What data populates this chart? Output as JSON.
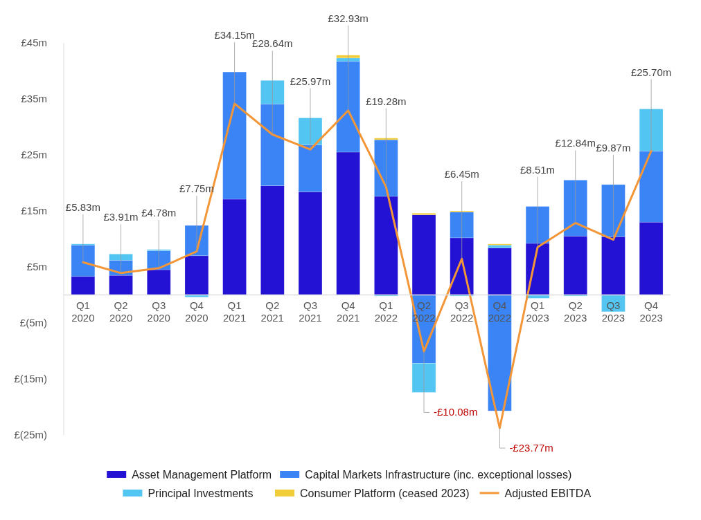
{
  "chart_data": {
    "type": "bar",
    "stacked": true,
    "categories": [
      "Q1 2020",
      "Q2 2020",
      "Q3 2020",
      "Q4 2020",
      "Q1 2021",
      "Q2 2021",
      "Q3 2021",
      "Q4 2021",
      "Q1 2022",
      "Q2 2022",
      "Q3 2022",
      "Q4 2022",
      "Q1 2023",
      "Q2 2023",
      "Q3 2023",
      "Q4 2023"
    ],
    "series": [
      {
        "name": "Asset Management Platform",
        "color": "#2312d4",
        "values": [
          3.3,
          3.5,
          4.5,
          7.0,
          17.1,
          19.5,
          18.4,
          25.5,
          17.6,
          14.3,
          10.2,
          8.4,
          9.2,
          10.5,
          10.4,
          13.0
        ]
      },
      {
        "name": "Capital Markets Infrastructure (inc. exceptional losses)",
        "color": "#3a84f5",
        "values": [
          5.6,
          2.7,
          3.4,
          5.4,
          22.7,
          14.6,
          8.4,
          16.2,
          10.1,
          -12.2,
          4.6,
          -20.7,
          6.6,
          10.0,
          9.3,
          12.7
        ]
      },
      {
        "name": "Principal Investments",
        "color": "#52c5f3",
        "values": [
          0.2,
          1.1,
          0.2,
          -0.4,
          null,
          4.2,
          4.8,
          0.6,
          -0.2,
          -5.2,
          -0.2,
          0.5,
          -0.6,
          -0.2,
          -3.0,
          7.5
        ]
      },
      {
        "name": "Consumer Platform (ceased 2023)",
        "color": "#f2cd3a",
        "values": [
          null,
          null,
          null,
          null,
          null,
          null,
          null,
          0.5,
          0.3,
          0.3,
          0.2,
          0.2,
          null,
          null,
          null,
          null
        ]
      },
      {
        "name": "Adjusted EBITDA",
        "type": "line",
        "color": "#f39638",
        "values": [
          5.83,
          3.91,
          4.78,
          7.75,
          34.15,
          28.64,
          25.97,
          32.93,
          19.28,
          -10.08,
          6.45,
          -23.77,
          8.51,
          12.84,
          9.87,
          25.7
        ],
        "value_labels": [
          "£5.83m",
          "£3.91m",
          "£4.78m",
          "£7.75m",
          "£34.15m",
          "£28.64m",
          "£25.97m",
          "£32.93m",
          "£19.28m",
          "-£10.08m",
          "£6.45m",
          "-£23.77m",
          "£8.51m",
          "£12.84m",
          "£9.87m",
          "£25.70m"
        ]
      }
    ],
    "ylim": [
      -25,
      45
    ],
    "yticks": [
      {
        "value": 45,
        "label": "£45m"
      },
      {
        "value": 35,
        "label": "£35m"
      },
      {
        "value": 25,
        "label": "£25m"
      },
      {
        "value": 15,
        "label": "£15m"
      },
      {
        "value": 5,
        "label": "£5m"
      },
      {
        "value": -5,
        "label": "£(5m)"
      },
      {
        "value": -15,
        "label": "£(15m)"
      },
      {
        "value": -25,
        "label": "£(25m)"
      }
    ],
    "grid": false,
    "legend": "bottom"
  }
}
